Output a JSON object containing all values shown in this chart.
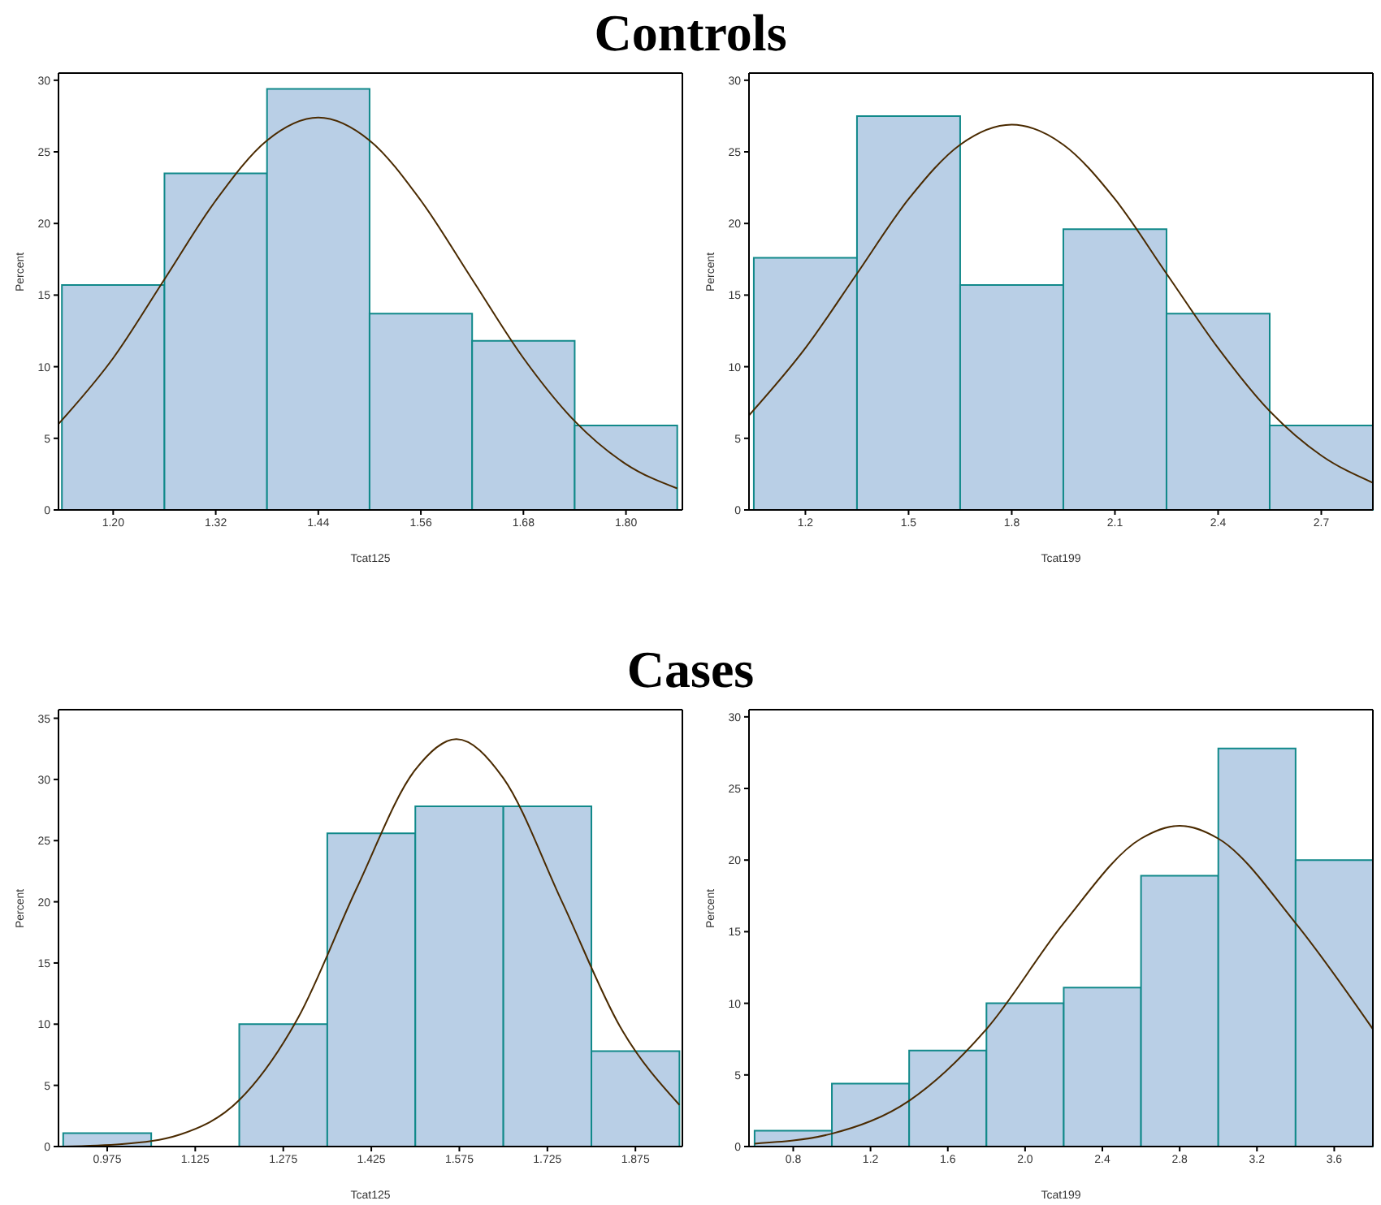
{
  "chart_data": [
    {
      "type": "histogram",
      "title": "Controls",
      "xlabel": "Tcat125",
      "ylabel": "Percent",
      "color": "#b9cfe6",
      "bins": [
        1.14,
        1.26,
        1.38,
        1.5,
        1.62,
        1.74,
        1.86
      ],
      "values": [
        15.7,
        23.5,
        29.4,
        13.7,
        11.8,
        5.9
      ],
      "series": [
        {
          "type": "line",
          "color": "#4a2a00",
          "x": [
            1.136,
            1.2,
            1.26,
            1.32,
            1.38,
            1.44,
            1.5,
            1.56,
            1.62,
            1.68,
            1.74,
            1.8,
            1.86
          ],
          "values": [
            6.0,
            10.6,
            16.1,
            21.6,
            25.8,
            27.4,
            25.8,
            21.6,
            16.1,
            10.6,
            6.2,
            3.2,
            1.5
          ]
        }
      ],
      "xlim": [
        1.136,
        1.866
      ],
      "xticks": [
        {
          "value": 1.2,
          "label": "1.20"
        },
        1.32,
        1.44,
        1.56,
        1.68,
        {
          "value": 1.8,
          "label": "1.80"
        }
      ],
      "ylim": [
        0,
        30.5
      ],
      "yticks": [
        0,
        5,
        10,
        15,
        20,
        25,
        30
      ]
    },
    {
      "type": "histogram",
      "xlabel": "Tcat199",
      "ylabel": "Percent",
      "color": "#b9cfe6",
      "bins": [
        1.05,
        1.35,
        1.65,
        1.95,
        2.25,
        2.55,
        2.85
      ],
      "values": [
        17.6,
        27.5,
        15.7,
        19.6,
        13.7,
        5.9
      ],
      "series": [
        {
          "type": "line",
          "color": "#4a2a00",
          "x": [
            1.036,
            1.2,
            1.35,
            1.5,
            1.65,
            1.8,
            1.95,
            2.1,
            2.25,
            2.4,
            2.55,
            2.7,
            2.85
          ],
          "values": [
            6.6,
            11.3,
            16.5,
            21.7,
            25.5,
            26.9,
            25.5,
            21.7,
            16.5,
            11.3,
            6.9,
            3.8,
            1.9
          ]
        }
      ],
      "xlim": [
        1.036,
        2.85
      ],
      "xticks": [
        1.2,
        1.5,
        1.8,
        2.1,
        2.4,
        2.7
      ],
      "ylim": [
        0,
        30.5
      ],
      "yticks": [
        0,
        5,
        10,
        15,
        20,
        25,
        30
      ]
    },
    {
      "type": "histogram",
      "title": "Cases",
      "xlabel": "Tcat125",
      "ylabel": "Percent",
      "color": "#b9cfe6",
      "bins": [
        0.9,
        1.05,
        1.2,
        1.35,
        1.5,
        1.65,
        1.8,
        1.95
      ],
      "values": [
        1.1,
        0,
        10.0,
        25.6,
        27.8,
        27.8,
        7.8
      ],
      "series": [
        {
          "type": "line",
          "color": "#4a2a00",
          "x": [
            0.9,
            1.0,
            1.1,
            1.2,
            1.3,
            1.4,
            1.5,
            1.57,
            1.65,
            1.75,
            1.85,
            1.95
          ],
          "values": [
            0,
            0.2,
            1.0,
            3.8,
            10.5,
            21.1,
            30.8,
            33.3,
            30.1,
            20.0,
            9.7,
            3.4
          ]
        }
      ],
      "xlim": [
        0.892,
        1.955
      ],
      "xticks": [
        0.975,
        1.125,
        1.275,
        1.425,
        1.575,
        1.725,
        1.875
      ],
      "ylim": [
        0,
        35.7
      ],
      "yticks": [
        0,
        5,
        10,
        15,
        20,
        25,
        30,
        35
      ]
    },
    {
      "type": "histogram",
      "xlabel": "Tcat199",
      "ylabel": "Percent",
      "color": "#b9cfe6",
      "bins": [
        0.6,
        1.0,
        1.4,
        1.8,
        2.2,
        2.6,
        3.0,
        3.4,
        3.8
      ],
      "values": [
        1.1,
        4.4,
        6.7,
        10.0,
        11.1,
        18.9,
        27.8,
        20.0
      ],
      "series": [
        {
          "type": "line",
          "color": "#4a2a00",
          "x": [
            0.6,
            1.0,
            1.4,
            1.8,
            2.2,
            2.6,
            2.8,
            3.0,
            3.4,
            3.8
          ],
          "values": [
            0.2,
            0.9,
            3.2,
            8.2,
            15.6,
            21.5,
            22.4,
            21.5,
            15.6,
            8.2
          ]
        }
      ],
      "xlim": [
        0.571,
        3.8
      ],
      "xticks": [
        0.8,
        1.2,
        1.6,
        {
          "value": 2.0,
          "label": "2.0"
        },
        2.4,
        2.8,
        3.2,
        3.6
      ],
      "ylim": [
        0,
        30.5
      ],
      "yticks": [
        0,
        5,
        10,
        15,
        20,
        25,
        30
      ]
    }
  ]
}
